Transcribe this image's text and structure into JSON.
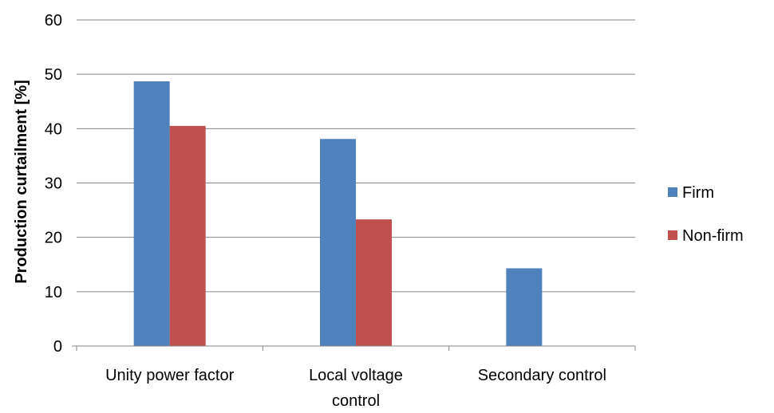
{
  "chart_data": {
    "type": "bar",
    "title": "",
    "xlabel": "",
    "ylabel": "Production curtailment [%]",
    "categories": [
      [
        "Unity power factor"
      ],
      [
        "Local voltage",
        "control"
      ],
      [
        "Secondary control"
      ]
    ],
    "series": [
      {
        "name": "Firm",
        "color": "#4F81BD",
        "values": [
          48.7,
          38.1,
          14.3
        ]
      },
      {
        "name": "Non-firm",
        "color": "#C0504D",
        "values": [
          40.5,
          23.3,
          0
        ]
      }
    ],
    "ylim": [
      0,
      60
    ],
    "yticks": [
      0,
      10,
      20,
      30,
      40,
      50,
      60
    ],
    "grid": true,
    "legend_position": "right",
    "colors": {
      "gridline": "#868686",
      "axis": "#868686"
    }
  }
}
